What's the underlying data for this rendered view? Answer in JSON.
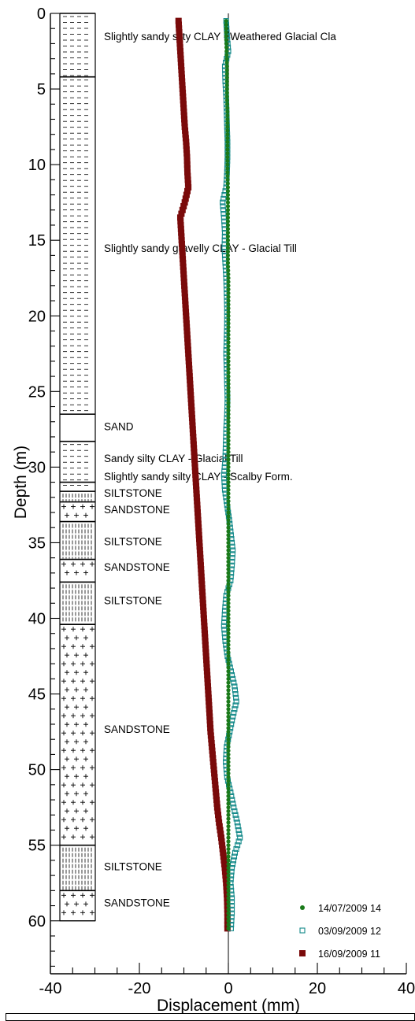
{
  "chart_data": {
    "type": "scatter",
    "title": "",
    "xlabel": "Displacement (mm)",
    "ylabel": "Depth (m)",
    "xlim": [
      -40,
      40
    ],
    "ylim": [
      0,
      63.5
    ],
    "y_inverted": true,
    "x_ticks": [
      -40,
      -20,
      0,
      20,
      40
    ],
    "y_ticks": [
      0,
      5,
      10,
      15,
      20,
      25,
      30,
      35,
      40,
      45,
      50,
      55,
      60
    ],
    "grid": false,
    "legend_position": "bottom-right",
    "colors": {
      "green": "#1a7a1a",
      "teal": "#148a8a",
      "maroon": "#7a0a0a",
      "axis": "#000000"
    },
    "series": [
      {
        "name": "14/07/2009 14",
        "marker": "filled-circle",
        "color": "#1a7a1a",
        "x": [
          -0.5,
          -0.5,
          -0.4,
          -0.3,
          -0.3,
          -0.3,
          -0.2,
          -0.2,
          -0.2,
          -0.2,
          -0.2,
          -0.1,
          -0.1,
          -0.1,
          -0.1,
          -0.1,
          -0.1,
          0.0,
          0.0,
          0.0,
          0.0,
          0.0,
          0.0,
          0.0,
          0.0,
          0.0,
          0.0,
          0.0,
          0.0,
          0.0,
          0.0,
          0.0,
          0.0,
          0.0,
          0.0,
          0.0,
          0.0,
          0.0,
          0.0,
          0.0,
          0.0,
          0.0,
          0.0,
          0.0,
          0.0,
          0.0,
          0.0,
          0.0,
          0.0,
          0.0,
          0.0,
          0.0,
          0.0,
          0.0,
          0.0,
          0.0,
          0.0,
          0.0,
          0.0,
          0.0,
          0.0
        ],
        "y": [
          0.5,
          1.5,
          2.5,
          3.5,
          4.5,
          5.5,
          6.5,
          7.5,
          8.5,
          9.5,
          10.5,
          11.5,
          12.5,
          13.5,
          14.5,
          15.5,
          16.5,
          17.5,
          18.5,
          19.5,
          20.5,
          21.5,
          22.5,
          23.5,
          24.5,
          25.5,
          26.5,
          27.5,
          28.5,
          29.5,
          30.5,
          31.5,
          32.5,
          33.5,
          34.5,
          35.5,
          36.5,
          37.5,
          38.5,
          39.5,
          40.5,
          41.5,
          42.5,
          43.5,
          44.5,
          45.5,
          46.5,
          47.5,
          48.5,
          49.5,
          50.5,
          51.5,
          52.5,
          53.5,
          54.5,
          55.5,
          56.5,
          57.5,
          58.5,
          59.5,
          60.5
        ]
      },
      {
        "name": "03/09/2009 12",
        "marker": "open-square",
        "color": "#148a8a",
        "x": [
          -0.5,
          -0.3,
          0.0,
          -0.8,
          -0.7,
          -0.5,
          -0.4,
          -0.3,
          -0.2,
          -0.2,
          -0.3,
          -0.5,
          -1.3,
          -1.0,
          -0.8,
          -0.9,
          -0.7,
          -0.5,
          -0.4,
          -0.3,
          -0.3,
          -0.4,
          -0.5,
          -0.4,
          -0.3,
          -0.2,
          -0.3,
          -0.5,
          -0.6,
          -0.7,
          -1.0,
          -0.8,
          -0.3,
          0.2,
          0.6,
          1.0,
          0.8,
          0.5,
          -0.5,
          -0.8,
          -1.0,
          -0.7,
          -0.2,
          0.6,
          1.4,
          1.8,
          1.0,
          0.3,
          -0.4,
          -0.6,
          -0.3,
          0.5,
          1.2,
          2.0,
          2.6,
          1.5,
          0.8,
          0.5,
          0.8,
          0.8,
          0.6
        ],
        "y": [
          0.5,
          1.5,
          2.5,
          3.5,
          4.5,
          5.5,
          6.5,
          7.5,
          8.5,
          9.5,
          10.5,
          11.5,
          12.5,
          13.5,
          14.5,
          15.5,
          16.5,
          17.5,
          18.5,
          19.5,
          20.5,
          21.5,
          22.5,
          23.5,
          24.5,
          25.5,
          26.5,
          27.5,
          28.5,
          29.5,
          30.5,
          31.5,
          32.5,
          33.5,
          34.5,
          35.5,
          36.5,
          37.5,
          38.5,
          39.5,
          40.5,
          41.5,
          42.5,
          43.5,
          44.5,
          45.5,
          46.5,
          47.5,
          48.5,
          49.5,
          50.5,
          51.5,
          52.5,
          53.5,
          54.5,
          55.5,
          56.5,
          57.5,
          58.5,
          59.5,
          60.5
        ]
      },
      {
        "name": "16/09/2009 11",
        "marker": "filled-square",
        "color": "#7a0a0a",
        "x": [
          -11.2,
          -11.0,
          -10.8,
          -10.6,
          -10.4,
          -10.2,
          -10.0,
          -9.8,
          -9.5,
          -9.3,
          -9.2,
          -9.0,
          -9.8,
          -10.8,
          -10.6,
          -10.4,
          -10.2,
          -10.0,
          -9.8,
          -9.6,
          -9.4,
          -9.2,
          -9.0,
          -8.8,
          -8.6,
          -8.4,
          -8.2,
          -8.0,
          -7.8,
          -7.6,
          -7.4,
          -7.2,
          -7.0,
          -6.8,
          -6.6,
          -6.4,
          -6.2,
          -6.0,
          -5.8,
          -5.6,
          -5.4,
          -5.2,
          -5.0,
          -4.8,
          -4.6,
          -4.4,
          -4.2,
          -4.0,
          -3.7,
          -3.4,
          -3.1,
          -2.8,
          -2.5,
          -2.1,
          -1.6,
          -1.2,
          -0.8,
          -0.5,
          -0.3,
          -0.2,
          -0.2
        ],
        "y": [
          0.5,
          1.5,
          2.5,
          3.5,
          4.5,
          5.5,
          6.5,
          7.5,
          8.5,
          9.5,
          10.5,
          11.5,
          12.5,
          13.5,
          14.5,
          15.5,
          16.5,
          17.5,
          18.5,
          19.5,
          20.5,
          21.5,
          22.5,
          23.5,
          24.5,
          25.5,
          26.5,
          27.5,
          28.5,
          29.5,
          30.5,
          31.5,
          32.5,
          33.5,
          34.5,
          35.5,
          36.5,
          37.5,
          38.5,
          39.5,
          40.5,
          41.5,
          42.5,
          43.5,
          44.5,
          45.5,
          46.5,
          47.5,
          48.5,
          49.5,
          50.5,
          51.5,
          52.5,
          53.5,
          54.5,
          55.5,
          56.5,
          57.5,
          58.5,
          59.5,
          60.5
        ]
      }
    ],
    "strata": [
      {
        "top": 0.0,
        "bottom": 4.2,
        "pattern": "dashes",
        "label": "Slightly sandy silty CLAY - Weathered Glacial Cla",
        "label_depth": 1.5
      },
      {
        "top": 4.2,
        "bottom": 26.5,
        "pattern": "dashes",
        "label": "Slightly sandy gravelly CLAY - Glacial Till",
        "label_depth": 15.5
      },
      {
        "top": 26.5,
        "bottom": 28.3,
        "pattern": "blank",
        "label": "SAND",
        "label_depth": 27.3
      },
      {
        "top": 28.3,
        "bottom": 31.0,
        "pattern": "dashes",
        "label": "Sandy silty CLAY - Glacial Till",
        "label_depth": 29.4
      },
      {
        "top": 31.0,
        "bottom": 31.6,
        "pattern": "dashes",
        "label": "Slightly sandy silty CLAY - Scalby Form.",
        "label_depth": 30.6
      },
      {
        "top": 31.6,
        "bottom": 32.3,
        "pattern": "verticals",
        "label": "SILTSTONE",
        "label_depth": 31.7
      },
      {
        "top": 32.3,
        "bottom": 33.6,
        "pattern": "crosses",
        "label": "SANDSTONE",
        "label_depth": 32.8
      },
      {
        "top": 33.6,
        "bottom": 36.1,
        "pattern": "verticals",
        "label": "SILTSTONE",
        "label_depth": 34.9
      },
      {
        "top": 36.1,
        "bottom": 37.6,
        "pattern": "crosses",
        "label": "SANDSTONE",
        "label_depth": 36.6
      },
      {
        "top": 37.6,
        "bottom": 40.4,
        "pattern": "verticals",
        "label": "SILTSTONE",
        "label_depth": 38.8
      },
      {
        "top": 40.4,
        "bottom": 55.0,
        "pattern": "crosses",
        "label": "SANDSTONE",
        "label_depth": 47.3
      },
      {
        "top": 55.0,
        "bottom": 58.0,
        "pattern": "verticals",
        "label": "SILTSTONE",
        "label_depth": 56.4
      },
      {
        "top": 58.0,
        "bottom": 60.0,
        "pattern": "crosses",
        "label": "SANDSTONE",
        "label_depth": 58.8
      }
    ]
  }
}
